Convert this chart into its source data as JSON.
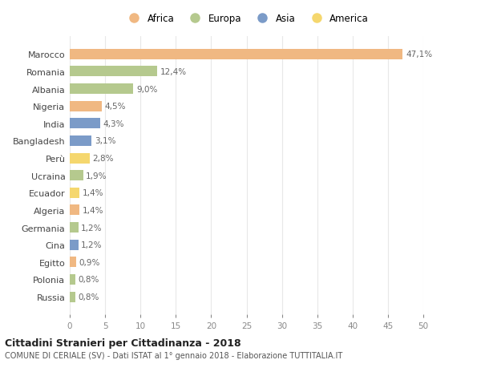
{
  "countries": [
    "Marocco",
    "Romania",
    "Albania",
    "Nigeria",
    "India",
    "Bangladesh",
    "Perù",
    "Ucraina",
    "Ecuador",
    "Algeria",
    "Germania",
    "Cina",
    "Egitto",
    "Polonia",
    "Russia"
  ],
  "values": [
    47.1,
    12.4,
    9.0,
    4.5,
    4.3,
    3.1,
    2.8,
    1.9,
    1.4,
    1.4,
    1.2,
    1.2,
    0.9,
    0.8,
    0.8
  ],
  "labels": [
    "47,1%",
    "12,4%",
    "9,0%",
    "4,5%",
    "4,3%",
    "3,1%",
    "2,8%",
    "1,9%",
    "1,4%",
    "1,4%",
    "1,2%",
    "1,2%",
    "0,9%",
    "0,8%",
    "0,8%"
  ],
  "colors": [
    "#f0b882",
    "#b5c98e",
    "#b5c98e",
    "#f0b882",
    "#7b9bc8",
    "#7b9bc8",
    "#f5d76e",
    "#b5c98e",
    "#f5d76e",
    "#f0b882",
    "#b5c98e",
    "#7b9bc8",
    "#f0b882",
    "#b5c98e",
    "#b5c98e"
  ],
  "legend_labels": [
    "Africa",
    "Europa",
    "Asia",
    "America"
  ],
  "legend_colors": [
    "#f0b882",
    "#b5c98e",
    "#7b9bc8",
    "#f5d76e"
  ],
  "title": "Cittadini Stranieri per Cittadinanza - 2018",
  "subtitle": "COMUNE DI CERIALE (SV) - Dati ISTAT al 1° gennaio 2018 - Elaborazione TUTTITALIA.IT",
  "xlim": [
    0,
    50
  ],
  "xticks": [
    0,
    5,
    10,
    15,
    20,
    25,
    30,
    35,
    40,
    45,
    50
  ],
  "bg_color": "#ffffff",
  "grid_color": "#e8e8e8"
}
